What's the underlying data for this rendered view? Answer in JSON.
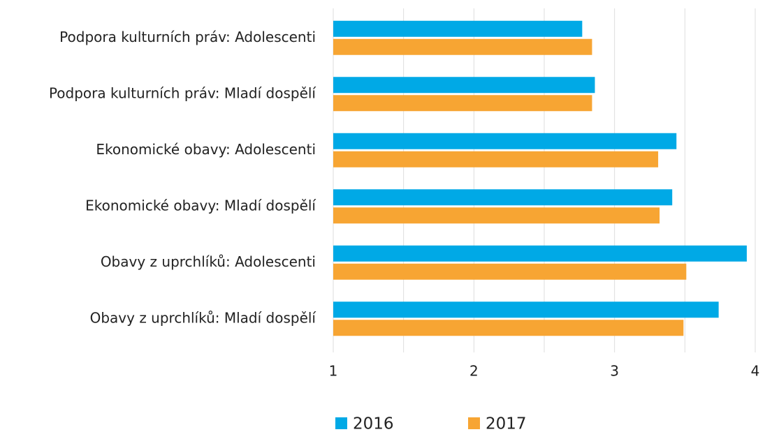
{
  "chart_data": {
    "type": "hbar",
    "categories": [
      "Podpora kulturních práv: Adolescenti",
      "Podpora kulturních práv: Mladí dospělí",
      "Ekonomické obavy: Adolescenti",
      "Ekonomické obavy: Mladí dospělí",
      "Obavy z uprchlíků: Adolescenti",
      "Obavy z uprchlíků: Mladí dospělí"
    ],
    "series": [
      {
        "name": "2016",
        "color": "#00a9e6",
        "values": [
          2.77,
          2.86,
          3.44,
          3.41,
          3.94,
          3.74
        ]
      },
      {
        "name": "2017",
        "color": "#f7a533",
        "values": [
          2.84,
          2.84,
          3.31,
          3.32,
          3.51,
          3.49
        ]
      }
    ],
    "xlim": [
      1,
      4
    ],
    "xticks": [
      1,
      2,
      3,
      4
    ],
    "xminorticks": [
      1.5,
      2.5,
      3.5
    ],
    "grid": true,
    "legend": "bottom"
  }
}
